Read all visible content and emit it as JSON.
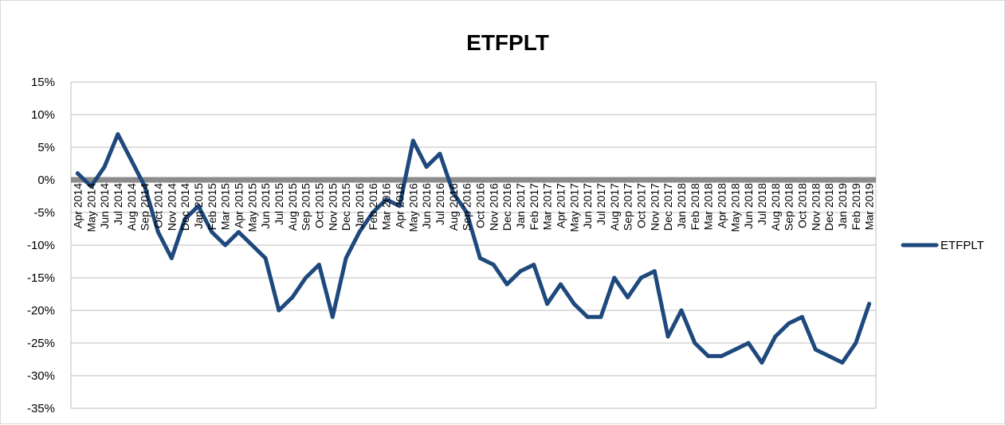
{
  "chart_data": {
    "type": "line",
    "title": "ETFPLT",
    "xlabel": "",
    "ylabel": "",
    "ylim": [
      -35,
      15
    ],
    "y_tick_values": [
      15,
      10,
      5,
      0,
      -5,
      -10,
      -15,
      -20,
      -25,
      -30,
      -35
    ],
    "y_tick_labels": [
      "15%",
      "10%",
      "5%",
      "0%",
      "-5%",
      "-10%",
      "-15%",
      "-20%",
      "-25%",
      "-30%",
      "-35%"
    ],
    "x_tick_labels": [
      "Apr 2014",
      "May 2014",
      "Jun 2014",
      "Jul 2014",
      "Aug 2014",
      "Sep 2014",
      "Oct 2014",
      "Nov 2014",
      "Dec 2014",
      "Jan 2015",
      "Feb 2015",
      "Mar 2015",
      "Apr 2015",
      "May 2015",
      "Jun 2015",
      "Jul 2015",
      "Aug 2015",
      "Sep 2015",
      "Oct 2015",
      "Nov 2015",
      "Dec 2015",
      "Jan 2016",
      "Feb 2016",
      "Mar 2016",
      "Apr 2016",
      "May 2016",
      "Jun 2016",
      "Jul 2016",
      "Aug 2016",
      "Sep 2016",
      "Oct 2016",
      "Nov 2016",
      "Dec 2016",
      "Jan 2017",
      "Feb 2017",
      "Mar 2017",
      "Apr 2017",
      "May 2017",
      "Jun 2017",
      "Jul 2017",
      "Aug 2017",
      "Sep 2017",
      "Oct 2017",
      "Nov 2017",
      "Dec 2017",
      "Jan 2018",
      "Feb 2018",
      "Mar 2018",
      "Apr 2018",
      "May 2018",
      "Jun 2018",
      "Jul 2018",
      "Aug 2018",
      "Sep 2018",
      "Oct 2018",
      "Nov 2018",
      "Dec 2018",
      "Jan 2019",
      "Feb 2019",
      "Mar 2019"
    ],
    "grid": true,
    "legend_position": "right",
    "reference_line": {
      "y": 0,
      "color": "#8c8c8c"
    },
    "series": [
      {
        "name": "ETFPLT",
        "color": "#1f497d",
        "x": [
          "2014-04",
          "2014-05",
          "2014-06",
          "2014-07",
          "2014-08",
          "2014-09",
          "2014-10",
          "2014-11",
          "2014-12",
          "2015-01",
          "2015-02",
          "2015-03",
          "2015-04",
          "2015-05",
          "2015-06",
          "2015-07",
          "2015-08",
          "2015-09",
          "2015-10",
          "2015-11",
          "2015-12",
          "2016-01",
          "2016-02",
          "2016-03",
          "2016-04",
          "2016-05",
          "2016-06",
          "2016-07",
          "2016-08",
          "2016-09",
          "2016-10",
          "2016-11",
          "2016-12",
          "2017-01",
          "2017-02",
          "2017-03",
          "2017-04",
          "2017-05",
          "2017-06",
          "2017-07",
          "2017-08",
          "2017-09",
          "2017-10",
          "2017-11",
          "2017-12",
          "2018-01",
          "2018-02",
          "2018-03",
          "2018-04",
          "2018-05",
          "2018-06",
          "2018-07",
          "2018-08",
          "2018-09",
          "2018-10",
          "2018-11",
          "2018-12",
          "2019-01",
          "2019-02",
          "2019-03"
        ],
        "values": [
          1,
          -1,
          2,
          7,
          3,
          -1,
          -8,
          -12,
          -6,
          -4,
          -8,
          -10,
          -8,
          -10,
          -12,
          -20,
          -18,
          -15,
          -13,
          -21,
          -12,
          -8,
          -5,
          -3,
          -4,
          6,
          2,
          4,
          -2,
          -5,
          -12,
          -13,
          -16,
          -14,
          -13,
          -19,
          -16,
          -19,
          -21,
          -21,
          -15,
          -18,
          -15,
          -14,
          -24,
          -20,
          -25,
          -27,
          -27,
          -26,
          -25,
          -28,
          -24,
          -22,
          -21,
          -26,
          -27,
          -28,
          -25,
          -19
        ]
      }
    ]
  }
}
